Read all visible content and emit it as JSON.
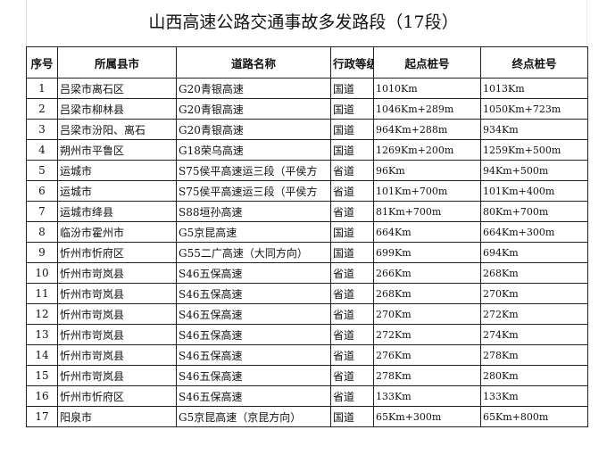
{
  "title": "山西高速公路交通事故多发路段（17段）",
  "headers": [
    "序号",
    "所属县市",
    "道路名称",
    "行政等级",
    "起点桩号",
    "终点桩号"
  ],
  "rows": [
    [
      "1",
      "吕梁市离石区",
      "G20青银高速",
      "国道",
      "1010Km",
      "1013Km"
    ],
    [
      "2",
      "吕梁市柳林县",
      "G20青银高速",
      "国道",
      "1046Km+289m",
      "1050Km+723m"
    ],
    [
      "3",
      "吕梁市汾阳、离石",
      "G20青银高速",
      "国道",
      "964Km+288m",
      "934Km"
    ],
    [
      "4",
      "朔州市平鲁区",
      "G18荣乌高速",
      "国道",
      "1269Km+200m",
      "1259Km+500m"
    ],
    [
      "5",
      "运城市",
      "S75侯平高速运三段（平侯方",
      "省道",
      "96Km",
      "94Km+500m"
    ],
    [
      "6",
      "运城市",
      "S75侯平高速运三段（平侯方",
      "省道",
      "101Km+700m",
      "101Km+400m"
    ],
    [
      "7",
      "运城市绛县",
      "S88垣孙高速",
      "省道",
      "81Km+700m",
      "80Km+700m"
    ],
    [
      "8",
      "临汾市霍州市",
      "G5京昆高速",
      "国道",
      "664Km",
      "664Km+300m"
    ],
    [
      "9",
      "忻州市忻府区",
      "G55二广高速（大同方向）",
      "国道",
      "699Km",
      "694Km"
    ],
    [
      "10",
      "忻州市岢岚县",
      "S46五保高速",
      "省道",
      "266Km",
      "268Km"
    ],
    [
      "11",
      "忻州市岢岚县",
      "S46五保高速",
      "省道",
      "268Km",
      "270Km"
    ],
    [
      "12",
      "忻州市岢岚县",
      "S46五保高速",
      "省道",
      "270Km",
      "272Km"
    ],
    [
      "13",
      "忻州市岢岚县",
      "S46五保高速",
      "省道",
      "272Km",
      "274Km"
    ],
    [
      "14",
      "忻州市岢岚县",
      "S46五保高速",
      "省道",
      "276Km",
      "278Km"
    ],
    [
      "15",
      "忻州市岢岚县",
      "S46五保高速",
      "省道",
      "278Km",
      "280Km"
    ],
    [
      "16",
      "忻州市忻府区",
      "S46五保高速",
      "省道",
      "133Km",
      "133Km"
    ],
    [
      "17",
      "阳泉市",
      "G5京昆高速（京昆方向）",
      "国道",
      "65Km+300m",
      "65Km+800m"
    ]
  ]
}
